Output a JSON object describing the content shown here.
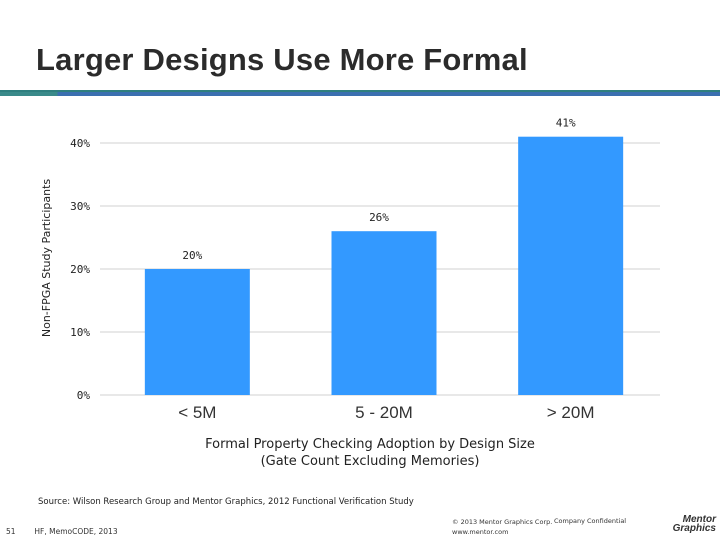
{
  "slide": {
    "title": "Larger Designs Use More Formal",
    "source": "Source: Wilson Research Group and Mentor Graphics, 2012 Functional Verification Study",
    "footer": {
      "page_number": "51",
      "presenter": "HF, MemoCODE, 2013",
      "copyright": "© 2013 Mentor Graphics Corp.",
      "website": "www.mentor.com",
      "confidential": "Company Confidential",
      "logo_line1": "Mentor",
      "logo_line2": "Graphics"
    }
  },
  "colors": {
    "bar": "#3399ff",
    "grid": "#d0d0d0",
    "title_rule": "#3b6fb0"
  },
  "chart_data": {
    "type": "bar",
    "title": "",
    "categories": [
      "< 5M",
      "5 - 20M",
      "> 20M"
    ],
    "values": [
      20,
      26,
      41
    ],
    "data_labels": [
      "20%",
      "26%",
      "41%"
    ],
    "ylabel": "Non-FPGA Study Participants",
    "xlabel_line1": "Formal Property Checking Adoption by Design Size",
    "xlabel_line2": "(Gate Count Excluding Memories)",
    "ylim": [
      0,
      40
    ],
    "yticks": [
      0,
      10,
      20,
      30,
      40
    ],
    "ytick_labels": [
      "0%",
      "10%",
      "20%",
      "30%",
      "40%"
    ],
    "grid": true
  }
}
